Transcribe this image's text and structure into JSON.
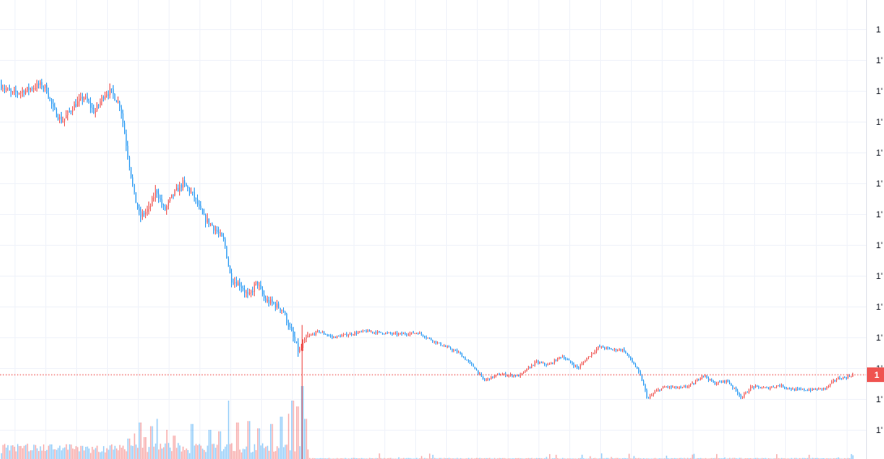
{
  "chart_data": {
    "type": "candlestick",
    "title": "",
    "xlabel": "",
    "ylabel": "",
    "ylim": [
      0,
      13.1
    ],
    "grid": true,
    "colors": {
      "up": "#ef5350",
      "down": "#2196f3",
      "grid": "#f0f3fa",
      "last_line": "#ef5350",
      "axis_border": "#e0e3eb"
    },
    "y_axis_ticks": [
      {
        "value": 13,
        "label": "1"
      },
      {
        "value": 12,
        "label": "1'"
      },
      {
        "value": 11,
        "label": "1'"
      },
      {
        "value": 10,
        "label": "1'"
      },
      {
        "value": 9,
        "label": "1'"
      },
      {
        "value": 8,
        "label": "1'"
      },
      {
        "value": 7,
        "label": "1'"
      },
      {
        "value": 6,
        "label": "1'"
      },
      {
        "value": 5,
        "label": "1'"
      },
      {
        "value": 4,
        "label": "1'"
      },
      {
        "value": 3,
        "label": "1'"
      },
      {
        "value": 2,
        "label": "1'"
      },
      {
        "value": 1,
        "label": "1'"
      },
      {
        "value": 0,
        "label": "1'"
      }
    ],
    "last_price": {
      "value": 1.8,
      "label": "1"
    },
    "price_path": [
      [
        0,
        11.2
      ],
      [
        14,
        10.9
      ],
      [
        30,
        11.0
      ],
      [
        48,
        11.2
      ],
      [
        56,
        11.1
      ],
      [
        65,
        10.4
      ],
      [
        76,
        10.0
      ],
      [
        90,
        10.5
      ],
      [
        103,
        10.8
      ],
      [
        116,
        10.3
      ],
      [
        128,
        10.9
      ],
      [
        136,
        11.0
      ],
      [
        148,
        10.5
      ],
      [
        156,
        9.1
      ],
      [
        165,
        7.6
      ],
      [
        172,
        6.9
      ],
      [
        184,
        7.2
      ],
      [
        192,
        7.8
      ],
      [
        202,
        7.1
      ],
      [
        212,
        7.6
      ],
      [
        225,
        8.0
      ],
      [
        238,
        7.6
      ],
      [
        250,
        6.9
      ],
      [
        262,
        6.6
      ],
      [
        276,
        6.1
      ],
      [
        284,
        4.9
      ],
      [
        296,
        4.7
      ],
      [
        306,
        4.3
      ],
      [
        316,
        4.8
      ],
      [
        326,
        4.2
      ],
      [
        336,
        4.1
      ],
      [
        348,
        3.9
      ],
      [
        358,
        3.2
      ],
      [
        368,
        2.5
      ],
      [
        378,
        3.0
      ],
      [
        392,
        3.2
      ],
      [
        410,
        3.0
      ],
      [
        430,
        3.1
      ],
      [
        450,
        3.2
      ],
      [
        470,
        3.15
      ],
      [
        490,
        3.1
      ],
      [
        515,
        3.15
      ],
      [
        540,
        2.8
      ],
      [
        565,
        2.5
      ],
      [
        585,
        2.0
      ],
      [
        596,
        1.6
      ],
      [
        615,
        1.8
      ],
      [
        640,
        1.75
      ],
      [
        660,
        2.2
      ],
      [
        676,
        2.1
      ],
      [
        692,
        2.4
      ],
      [
        712,
        2.0
      ],
      [
        726,
        2.4
      ],
      [
        738,
        2.7
      ],
      [
        755,
        2.6
      ],
      [
        768,
        2.6
      ],
      [
        782,
        2.1
      ],
      [
        790,
        1.7
      ],
      [
        798,
        1.0
      ],
      [
        808,
        1.25
      ],
      [
        820,
        1.4
      ],
      [
        840,
        1.35
      ],
      [
        855,
        1.5
      ],
      [
        866,
        1.8
      ],
      [
        880,
        1.5
      ],
      [
        896,
        1.6
      ],
      [
        914,
        1.05
      ],
      [
        926,
        1.4
      ],
      [
        945,
        1.35
      ],
      [
        960,
        1.45
      ],
      [
        978,
        1.3
      ],
      [
        1000,
        1.3
      ],
      [
        1018,
        1.35
      ],
      [
        1030,
        1.65
      ],
      [
        1042,
        1.7
      ],
      [
        1052,
        1.8
      ]
    ],
    "volume_spikes": [
      [
        38,
        0.12
      ],
      [
        62,
        0.2
      ],
      [
        100,
        0.18
      ],
      [
        158,
        0.28
      ],
      [
        165,
        0.35
      ],
      [
        172,
        0.5
      ],
      [
        178,
        0.3
      ],
      [
        186,
        0.45
      ],
      [
        193,
        0.55
      ],
      [
        205,
        0.4
      ],
      [
        214,
        0.32
      ],
      [
        236,
        0.48
      ],
      [
        258,
        0.4
      ],
      [
        270,
        0.38
      ],
      [
        281,
        0.8
      ],
      [
        292,
        0.5
      ],
      [
        306,
        0.52
      ],
      [
        318,
        0.42
      ],
      [
        334,
        0.48
      ],
      [
        346,
        0.58
      ],
      [
        355,
        0.62
      ],
      [
        360,
        0.8
      ],
      [
        366,
        0.72
      ],
      [
        372,
        1.0
      ],
      [
        376,
        0.55
      ]
    ]
  }
}
